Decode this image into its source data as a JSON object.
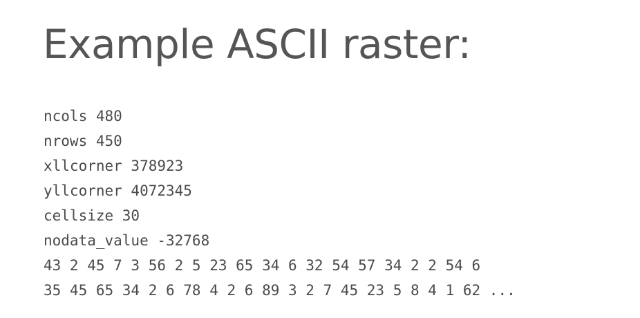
{
  "title": "Example ASCII raster:",
  "lines": [
    "ncols 480",
    "nrows 450",
    "xllcorner 378923",
    "yllcorner 4072345",
    "cellsize 30",
    "nodata_value -32768",
    "43 2 45 7 3 56 2 5 23 65 34 6 32 54 57 34 2 2 54 6",
    "35 45 65 34 2 6 78 4 2 6 89 3 2 7 45 23 5 8 4 1 62 ..."
  ]
}
